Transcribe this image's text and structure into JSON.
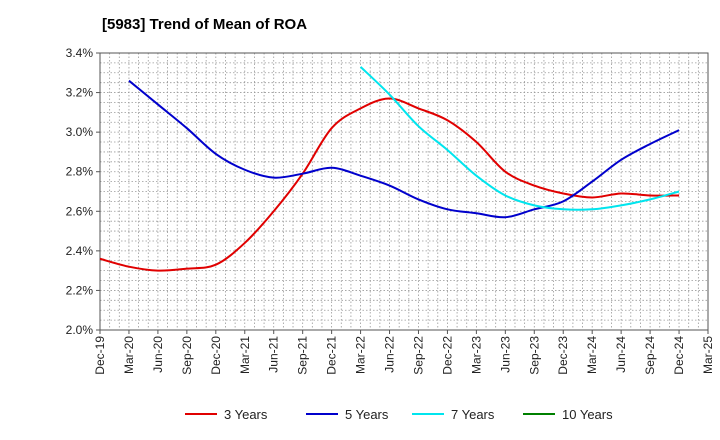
{
  "chart_data": {
    "type": "line",
    "title": "[5983]  Trend of Mean of ROA",
    "xlabel": "",
    "ylabel": "",
    "ylim": [
      2.0,
      3.4
    ],
    "y_ticks": [
      "2.0%",
      "2.2%",
      "2.4%",
      "2.6%",
      "2.8%",
      "3.0%",
      "3.2%",
      "3.4%"
    ],
    "y_tick_values": [
      2.0,
      2.2,
      2.4,
      2.6,
      2.8,
      3.0,
      3.2,
      3.4
    ],
    "categories": [
      "Dec-19",
      "Mar-20",
      "Jun-20",
      "Sep-20",
      "Dec-20",
      "Mar-21",
      "Jun-21",
      "Sep-21",
      "Dec-21",
      "Mar-22",
      "Jun-22",
      "Sep-22",
      "Dec-22",
      "Mar-23",
      "Jun-23",
      "Sep-23",
      "Dec-23",
      "Mar-24",
      "Jun-24",
      "Sep-24",
      "Dec-24",
      "Mar-25"
    ],
    "grid": true,
    "legend_position": "bottom",
    "series": [
      {
        "name": "3 Years",
        "color": "#e00000",
        "values": [
          2.36,
          2.32,
          2.3,
          2.31,
          2.33,
          2.44,
          2.6,
          2.79,
          3.02,
          3.12,
          3.17,
          3.12,
          3.06,
          2.95,
          2.8,
          2.73,
          2.69,
          2.67,
          2.69,
          2.68,
          2.68,
          null
        ]
      },
      {
        "name": "5 Years",
        "color": "#0000cc",
        "values": [
          null,
          3.26,
          3.14,
          3.02,
          2.89,
          2.81,
          2.77,
          2.79,
          2.82,
          2.78,
          2.73,
          2.66,
          2.61,
          2.59,
          2.57,
          2.61,
          2.65,
          2.75,
          2.86,
          2.94,
          3.01,
          null
        ]
      },
      {
        "name": "7 Years",
        "color": "#00e5ee",
        "values": [
          null,
          null,
          null,
          null,
          null,
          null,
          null,
          null,
          null,
          3.33,
          3.19,
          3.03,
          2.91,
          2.78,
          2.68,
          2.63,
          2.61,
          2.61,
          2.63,
          2.66,
          2.7,
          null
        ]
      },
      {
        "name": "10 Years",
        "color": "#008000",
        "values": [
          null,
          null,
          null,
          null,
          null,
          null,
          null,
          null,
          null,
          null,
          null,
          null,
          null,
          null,
          null,
          null,
          null,
          null,
          null,
          null,
          null,
          null
        ]
      }
    ]
  }
}
